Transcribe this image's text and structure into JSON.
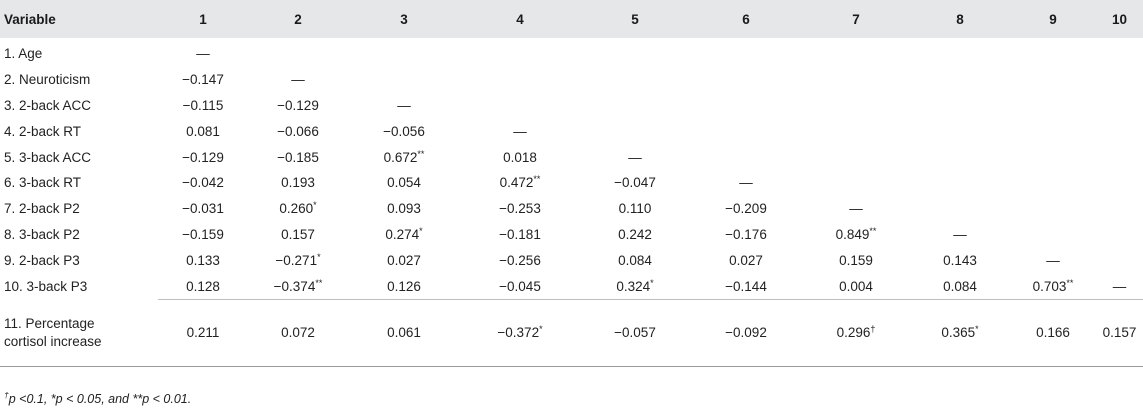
{
  "headers": [
    "Variable",
    "1",
    "2",
    "3",
    "4",
    "5",
    "6",
    "7",
    "8",
    "9",
    "10"
  ],
  "rows": [
    {
      "label": "1. Age",
      "cells": [
        {
          "v": "—"
        },
        {
          "v": ""
        },
        {
          "v": ""
        },
        {
          "v": ""
        },
        {
          "v": ""
        },
        {
          "v": ""
        },
        {
          "v": ""
        },
        {
          "v": ""
        },
        {
          "v": ""
        },
        {
          "v": ""
        }
      ]
    },
    {
      "label": "2. Neuroticism",
      "cells": [
        {
          "v": "−0.147"
        },
        {
          "v": "—"
        },
        {
          "v": ""
        },
        {
          "v": ""
        },
        {
          "v": ""
        },
        {
          "v": ""
        },
        {
          "v": ""
        },
        {
          "v": ""
        },
        {
          "v": ""
        },
        {
          "v": ""
        }
      ]
    },
    {
      "label": "3. 2-back ACC",
      "cells": [
        {
          "v": "−0.115"
        },
        {
          "v": "−0.129"
        },
        {
          "v": "—"
        },
        {
          "v": ""
        },
        {
          "v": ""
        },
        {
          "v": ""
        },
        {
          "v": ""
        },
        {
          "v": ""
        },
        {
          "v": ""
        },
        {
          "v": ""
        }
      ]
    },
    {
      "label": "4. 2-back RT",
      "cells": [
        {
          "v": "0.081"
        },
        {
          "v": "−0.066"
        },
        {
          "v": "−0.056"
        },
        {
          "v": "—"
        },
        {
          "v": ""
        },
        {
          "v": ""
        },
        {
          "v": ""
        },
        {
          "v": ""
        },
        {
          "v": ""
        },
        {
          "v": ""
        }
      ]
    },
    {
      "label": "5. 3-back ACC",
      "cells": [
        {
          "v": "−0.129"
        },
        {
          "v": "−0.185"
        },
        {
          "v": "0.672",
          "s": "**"
        },
        {
          "v": "0.018"
        },
        {
          "v": "—"
        },
        {
          "v": ""
        },
        {
          "v": ""
        },
        {
          "v": ""
        },
        {
          "v": ""
        },
        {
          "v": ""
        }
      ]
    },
    {
      "label": "6. 3-back RT",
      "cells": [
        {
          "v": "−0.042"
        },
        {
          "v": "0.193"
        },
        {
          "v": "0.054"
        },
        {
          "v": "0.472",
          "s": "**"
        },
        {
          "v": "−0.047"
        },
        {
          "v": "—"
        },
        {
          "v": ""
        },
        {
          "v": ""
        },
        {
          "v": ""
        },
        {
          "v": ""
        }
      ]
    },
    {
      "label": "7. 2-back P2",
      "cells": [
        {
          "v": "−0.031"
        },
        {
          "v": "0.260",
          "s": "*"
        },
        {
          "v": "0.093"
        },
        {
          "v": "−0.253"
        },
        {
          "v": "0.110"
        },
        {
          "v": "−0.209"
        },
        {
          "v": "—"
        },
        {
          "v": ""
        },
        {
          "v": ""
        },
        {
          "v": ""
        }
      ]
    },
    {
      "label": "8. 3-back P2",
      "cells": [
        {
          "v": "−0.159"
        },
        {
          "v": "0.157"
        },
        {
          "v": "0.274",
          "s": "*"
        },
        {
          "v": "−0.181"
        },
        {
          "v": "0.242"
        },
        {
          "v": "−0.176"
        },
        {
          "v": "0.849",
          "s": "**"
        },
        {
          "v": "—"
        },
        {
          "v": ""
        },
        {
          "v": ""
        }
      ]
    },
    {
      "label": "9. 2-back P3",
      "cells": [
        {
          "v": "0.133"
        },
        {
          "v": "−0.271",
          "s": "*"
        },
        {
          "v": "0.027"
        },
        {
          "v": "−0.256"
        },
        {
          "v": "0.084"
        },
        {
          "v": "0.027"
        },
        {
          "v": "0.159"
        },
        {
          "v": "0.143"
        },
        {
          "v": "—"
        },
        {
          "v": ""
        }
      ]
    },
    {
      "label": "10. 3-back P3",
      "cells": [
        {
          "v": "0.128"
        },
        {
          "v": "−0.374",
          "s": "**"
        },
        {
          "v": "0.126"
        },
        {
          "v": "−0.045"
        },
        {
          "v": "0.324",
          "s": "*"
        },
        {
          "v": "−0.144"
        },
        {
          "v": "0.004"
        },
        {
          "v": "0.084"
        },
        {
          "v": "0.703",
          "s": "**"
        },
        {
          "v": "—"
        }
      ]
    },
    {
      "label_lines": [
        "11. Percentage",
        "cortisol increase"
      ],
      "cells": [
        {
          "v": "0.211"
        },
        {
          "v": "0.072"
        },
        {
          "v": "0.061"
        },
        {
          "v": "−0.372",
          "s": "*"
        },
        {
          "v": "−0.057"
        },
        {
          "v": "−0.092"
        },
        {
          "v": "0.296",
          "s": "†"
        },
        {
          "v": "0.365",
          "s": "*"
        },
        {
          "v": "0.166"
        },
        {
          "v": "0.157"
        }
      ]
    }
  ],
  "footnote": {
    "dagger": "†",
    "part1": "p <0.1, ",
    "star1": "*",
    "part2": "p < 0.05, and ",
    "star2": "**",
    "part3": "p < 0.01."
  }
}
